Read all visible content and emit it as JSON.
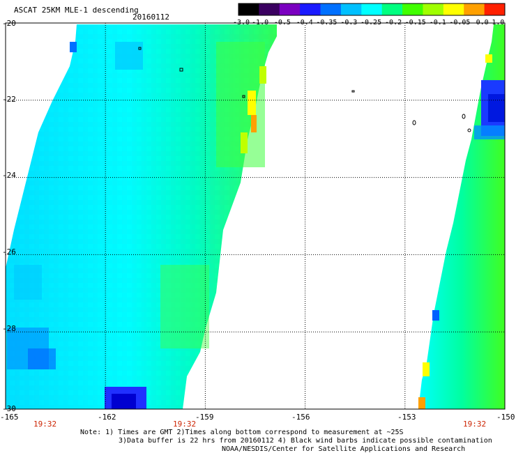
{
  "header": {
    "title": "ASCAT 25KM MLE-1 descending",
    "date": "20160112"
  },
  "colorbar": {
    "ticks": [
      "-3.0",
      "-1.0",
      "-0.5",
      "-0.4",
      "-0.35",
      "-0.3",
      "-0.25",
      "-0.2",
      "-0.15",
      "-0.1",
      "-0.05",
      "0.0",
      "1.0"
    ],
    "colors": [
      "#000000",
      "#3a0060",
      "#7a00c0",
      "#1a1aff",
      "#0070ff",
      "#00c0ff",
      "#00ffff",
      "#00ff80",
      "#40ff00",
      "#a0ff00",
      "#ffff00",
      "#ffa000",
      "#ff2000"
    ]
  },
  "axes": {
    "lat_labels": [
      "-20",
      "-22",
      "-24",
      "-26",
      "-28",
      "-30"
    ],
    "lon_labels": [
      "-165",
      "-162",
      "-159",
      "-156",
      "-153",
      "-150"
    ],
    "lat_range": [
      -30,
      -20
    ],
    "lon_range": [
      -165,
      -150
    ]
  },
  "pass_times": [
    "19:32",
    "19:32",
    "19:32"
  ],
  "notes": {
    "line1": "Note: 1) Times are GMT 2)Times along bottom correspond to measurement at ~25S",
    "line2": "3)Data buffer is 22 hrs from 20160112 4) Black wind barbs indicate possible contamination",
    "line3": "NOAA/NESDIS/Center for Satellite Applications and Research"
  }
}
